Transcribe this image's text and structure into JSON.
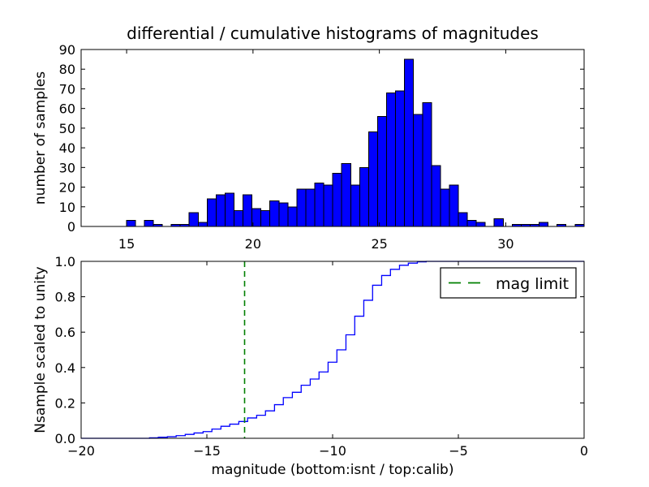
{
  "figure": {
    "background": "#ffffff",
    "title": "differential / cumulative histograms of magnitudes"
  },
  "chart_data": [
    {
      "type": "bar",
      "subplot": "top",
      "title": "differential / cumulative histograms of magnitudes",
      "xlabel": "",
      "ylabel": "number of samples",
      "xlim": [
        13.2,
        33.1
      ],
      "ylim": [
        0,
        90
      ],
      "xticks": [
        15,
        20,
        25,
        30
      ],
      "xtick_labels": [
        "15",
        "20",
        "25",
        "30"
      ],
      "yticks": [
        0,
        10,
        20,
        30,
        40,
        50,
        60,
        70,
        80,
        90
      ],
      "ytick_labels": [
        "0",
        "10",
        "20",
        "30",
        "40",
        "50",
        "60",
        "70",
        "80",
        "90"
      ],
      "bar_color": "#0000ff",
      "bar_edge_color": "#000000",
      "grid": false,
      "bins": {
        "start": 14.28,
        "width": 0.355
      },
      "counts": [
        0,
        0,
        3,
        0,
        3,
        1,
        0,
        1,
        1,
        7,
        2,
        14,
        16,
        17,
        8,
        16,
        9,
        8,
        13,
        12,
        10,
        19,
        19,
        22,
        21,
        27,
        32,
        21,
        30,
        48,
        56,
        68,
        69,
        85,
        57,
        63,
        31,
        19,
        21,
        7,
        3,
        2,
        0,
        4,
        0,
        1,
        1,
        1,
        2,
        0,
        1,
        0,
        1
      ]
    },
    {
      "type": "line",
      "subplot": "bottom",
      "style": "cumulative-step",
      "xlabel": "magnitude (bottom:isnt / top:calib)",
      "ylabel": "Nsample scaled to unity",
      "xlim": [
        -20,
        0
      ],
      "ylim": [
        0.0,
        1.0
      ],
      "xticks": [
        -20,
        -15,
        -10,
        -5,
        0
      ],
      "xtick_labels": [
        "−20",
        "−15",
        "−10",
        "−5",
        "0"
      ],
      "yticks": [
        0.0,
        0.2,
        0.4,
        0.6,
        0.8,
        1.0
      ],
      "ytick_labels": [
        "0.0",
        "0.2",
        "0.4",
        "0.6",
        "0.8",
        "1.0"
      ],
      "line_color": "#0000ff",
      "grid": false,
      "steps": [
        [
          -17.28,
          0.003
        ],
        [
          -16.93,
          0.006
        ],
        [
          -16.57,
          0.009
        ],
        [
          -16.22,
          0.015
        ],
        [
          -15.86,
          0.022
        ],
        [
          -15.51,
          0.03
        ],
        [
          -15.15,
          0.038
        ],
        [
          -14.8,
          0.052
        ],
        [
          -14.44,
          0.068
        ],
        [
          -14.09,
          0.08
        ],
        [
          -13.73,
          0.095
        ],
        [
          -13.38,
          0.115
        ],
        [
          -13.02,
          0.13
        ],
        [
          -12.67,
          0.155
        ],
        [
          -12.31,
          0.19
        ],
        [
          -11.96,
          0.23
        ],
        [
          -11.6,
          0.26
        ],
        [
          -11.25,
          0.3
        ],
        [
          -10.89,
          0.335
        ],
        [
          -10.54,
          0.375
        ],
        [
          -10.18,
          0.43
        ],
        [
          -9.83,
          0.5
        ],
        [
          -9.47,
          0.585
        ],
        [
          -9.12,
          0.69
        ],
        [
          -8.76,
          0.78
        ],
        [
          -8.41,
          0.865
        ],
        [
          -8.05,
          0.92
        ],
        [
          -7.7,
          0.955
        ],
        [
          -7.34,
          0.978
        ],
        [
          -6.99,
          0.99
        ],
        [
          -6.63,
          0.997
        ],
        [
          -6.28,
          1.0
        ]
      ],
      "mag_limit": {
        "x": -13.5,
        "color": "#008000",
        "linestyle": "dashed",
        "label": "mag limit"
      },
      "legend": {
        "entries": [
          "mag limit"
        ],
        "location": "upper right",
        "sample_color": "#008000"
      }
    }
  ]
}
